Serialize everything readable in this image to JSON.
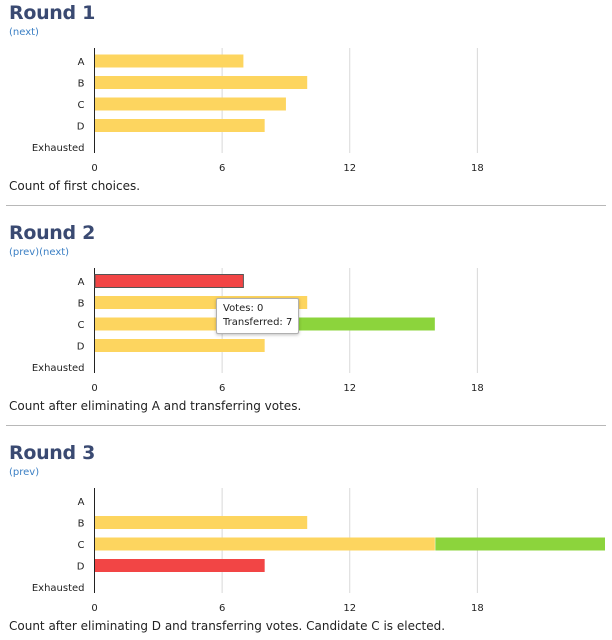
{
  "colors": {
    "votes": "#fdd55f",
    "transferred": "#8cd43c",
    "eliminated": "#f24545",
    "title": "#3a4a72",
    "link": "#3b7fc4"
  },
  "rounds": [
    {
      "title": "Round 1",
      "nav": [
        {
          "label": "(next)"
        }
      ],
      "caption": "Count of first choices."
    },
    {
      "title": "Round 2",
      "nav": [
        {
          "label": "(prev)"
        },
        {
          "label": "(next)"
        }
      ],
      "caption": "Count after eliminating A and transferring votes.",
      "tooltip": {
        "votes": "Votes: 0",
        "transferred": "Transferred: 7"
      }
    },
    {
      "title": "Round 3",
      "nav": [
        {
          "label": "(prev)"
        }
      ],
      "caption": "Count after eliminating D and transferring votes. Candidate C is elected."
    }
  ],
  "chart_data": [
    {
      "type": "bar",
      "orientation": "horizontal",
      "categories": [
        "A",
        "B",
        "C",
        "D",
        "Exhausted"
      ],
      "series": [
        {
          "values": [
            7,
            10,
            9,
            8,
            0
          ]
        }
      ],
      "xlim": [
        0,
        24
      ],
      "x_ticks": [
        0,
        6,
        12,
        18
      ],
      "grid": true
    },
    {
      "type": "bar",
      "orientation": "horizontal",
      "stacked": true,
      "categories": [
        "A",
        "B",
        "C",
        "D",
        "Exhausted"
      ],
      "series": [
        {
          "values": [
            7,
            10,
            9,
            8,
            0
          ]
        },
        {
          "values": [
            0,
            0,
            7,
            0,
            0
          ]
        }
      ],
      "eliminated": [
        "A"
      ],
      "xlim": [
        0,
        24
      ],
      "x_ticks": [
        0,
        6,
        12,
        18
      ],
      "grid": true
    },
    {
      "type": "bar",
      "orientation": "horizontal",
      "stacked": true,
      "categories": [
        "A",
        "B",
        "C",
        "D",
        "Exhausted"
      ],
      "series": [
        {
          "values": [
            0,
            10,
            16,
            8,
            0
          ]
        },
        {
          "values": [
            0,
            0,
            8,
            0,
            0
          ]
        }
      ],
      "eliminated": [
        "D"
      ],
      "xlim": [
        0,
        24
      ],
      "x_ticks": [
        0,
        6,
        12,
        18
      ],
      "grid": true
    }
  ]
}
